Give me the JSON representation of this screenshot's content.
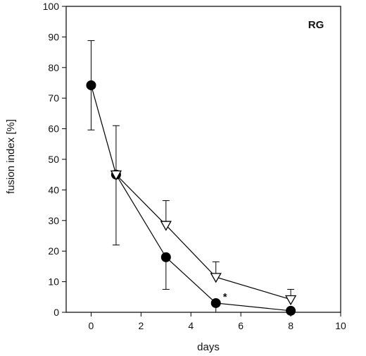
{
  "chart_data": {
    "type": "scatter",
    "title": "",
    "panel_label": "RG",
    "xlabel": "days",
    "ylabel": "fusion index [%]",
    "xlim": [
      -1,
      10
    ],
    "ylim": [
      0,
      100
    ],
    "x_ticks": [
      0,
      2,
      4,
      6,
      8,
      10
    ],
    "y_ticks": [
      0,
      10,
      20,
      30,
      40,
      50,
      60,
      70,
      80,
      90,
      100
    ],
    "grid": false,
    "series": [
      {
        "marker": "filled-circle",
        "color": "#000000",
        "points": [
          {
            "x": 0,
            "y": 74.2,
            "err_up": 14.6,
            "err_down": 14.6
          },
          {
            "x": 1,
            "y": 45.0,
            "err_up": 16.0,
            "err_down": 23.0
          },
          {
            "x": 3,
            "y": 18.0,
            "err_up": 0,
            "err_down": 10.5
          },
          {
            "x": 5,
            "y": 3.0,
            "err_up": 0,
            "err_down": 3.0
          },
          {
            "x": 8,
            "y": 0.5,
            "err_up": 0,
            "err_down": 0
          }
        ]
      },
      {
        "marker": "open-triangle-down",
        "color": "#000000",
        "points": [
          {
            "x": 1,
            "y": 45.0,
            "err_up": 0,
            "err_down": 0
          },
          {
            "x": 3,
            "y": 28.5,
            "err_up": 8.0,
            "err_down": 0
          },
          {
            "x": 5,
            "y": 11.5,
            "err_up": 5.0,
            "err_down": 0
          },
          {
            "x": 8,
            "y": 4.2,
            "err_up": 3.3,
            "err_down": 0
          }
        ]
      }
    ],
    "annotations": [
      {
        "text": "*",
        "x": 5,
        "y": 3.0
      }
    ]
  }
}
